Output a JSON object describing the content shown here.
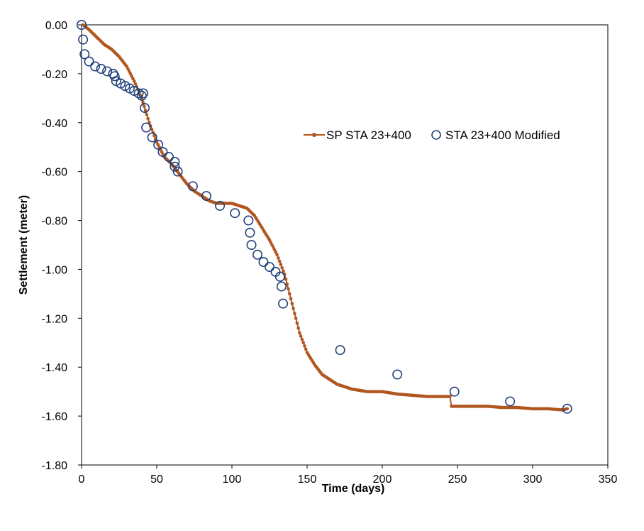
{
  "chart_data": {
    "type": "scatter",
    "xlabel": "Time (days)",
    "ylabel": "Settlement (meter)",
    "xlim": [
      0,
      350
    ],
    "ylim": [
      -1.8,
      0.0
    ],
    "x_ticks": [
      0,
      50,
      100,
      150,
      200,
      250,
      300,
      350
    ],
    "y_ticks": [
      0.0,
      -0.2,
      -0.4,
      -0.6,
      -0.8,
      -1.0,
      -1.2,
      -1.4,
      -1.6,
      -1.8
    ],
    "x_tick_labels": [
      "0",
      "50",
      "100",
      "150",
      "200",
      "250",
      "300",
      "350"
    ],
    "y_tick_labels": [
      "0.00",
      "-0.20",
      "-0.40",
      "-0.60",
      "-0.80",
      "-1.00",
      "-1.20",
      "-1.40",
      "-1.60",
      "-1.80"
    ],
    "grid": false,
    "legend_position": "right",
    "series": [
      {
        "name": "SP STA 23+400",
        "style": "line-markers",
        "color": "#B0561E",
        "points": [
          [
            1,
            0.0
          ],
          [
            5,
            -0.02
          ],
          [
            10,
            -0.05
          ],
          [
            15,
            -0.08
          ],
          [
            20,
            -0.1
          ],
          [
            25,
            -0.13
          ],
          [
            30,
            -0.17
          ],
          [
            35,
            -0.23
          ],
          [
            40,
            -0.3
          ],
          [
            45,
            -0.4
          ],
          [
            50,
            -0.48
          ],
          [
            55,
            -0.54
          ],
          [
            60,
            -0.57
          ],
          [
            65,
            -0.61
          ],
          [
            70,
            -0.65
          ],
          [
            75,
            -0.68
          ],
          [
            80,
            -0.7
          ],
          [
            85,
            -0.72
          ],
          [
            90,
            -0.73
          ],
          [
            95,
            -0.73
          ],
          [
            100,
            -0.73
          ],
          [
            105,
            -0.74
          ],
          [
            110,
            -0.75
          ],
          [
            115,
            -0.78
          ],
          [
            120,
            -0.83
          ],
          [
            125,
            -0.88
          ],
          [
            130,
            -0.94
          ],
          [
            135,
            -1.02
          ],
          [
            140,
            -1.14
          ],
          [
            145,
            -1.26
          ],
          [
            150,
            -1.34
          ],
          [
            155,
            -1.39
          ],
          [
            160,
            -1.43
          ],
          [
            165,
            -1.45
          ],
          [
            170,
            -1.47
          ],
          [
            175,
            -1.48
          ],
          [
            180,
            -1.49
          ],
          [
            185,
            -1.495
          ],
          [
            190,
            -1.5
          ],
          [
            200,
            -1.5
          ],
          [
            210,
            -1.51
          ],
          [
            220,
            -1.515
          ],
          [
            230,
            -1.52
          ],
          [
            240,
            -1.52
          ],
          [
            245,
            -1.52
          ],
          [
            246,
            -1.56
          ],
          [
            250,
            -1.56
          ],
          [
            260,
            -1.56
          ],
          [
            270,
            -1.56
          ],
          [
            280,
            -1.565
          ],
          [
            290,
            -1.565
          ],
          [
            300,
            -1.57
          ],
          [
            310,
            -1.57
          ],
          [
            320,
            -1.575
          ],
          [
            323,
            -1.57
          ]
        ]
      },
      {
        "name": "STA 23+400 Modified",
        "style": "open-circles",
        "color": "#1F3F7A",
        "points": [
          [
            0,
            0.0
          ],
          [
            1,
            -0.06
          ],
          [
            2,
            -0.12
          ],
          [
            5,
            -0.15
          ],
          [
            9,
            -0.17
          ],
          [
            13,
            -0.18
          ],
          [
            17,
            -0.19
          ],
          [
            21,
            -0.2
          ],
          [
            22,
            -0.21
          ],
          [
            23,
            -0.23
          ],
          [
            26,
            -0.24
          ],
          [
            29,
            -0.25
          ],
          [
            32,
            -0.26
          ],
          [
            35,
            -0.27
          ],
          [
            38,
            -0.28
          ],
          [
            40,
            -0.29
          ],
          [
            41,
            -0.28
          ],
          [
            42,
            -0.34
          ],
          [
            43,
            -0.42
          ],
          [
            47,
            -0.46
          ],
          [
            51,
            -0.49
          ],
          [
            54,
            -0.52
          ],
          [
            58,
            -0.54
          ],
          [
            62,
            -0.56
          ],
          [
            62,
            -0.58
          ],
          [
            64,
            -0.6
          ],
          [
            74,
            -0.66
          ],
          [
            83,
            -0.7
          ],
          [
            92,
            -0.74
          ],
          [
            102,
            -0.77
          ],
          [
            111,
            -0.8
          ],
          [
            112,
            -0.85
          ],
          [
            113,
            -0.9
          ],
          [
            117,
            -0.94
          ],
          [
            121,
            -0.97
          ],
          [
            125,
            -0.99
          ],
          [
            129,
            -1.01
          ],
          [
            132,
            -1.03
          ],
          [
            133,
            -1.07
          ],
          [
            134,
            -1.14
          ],
          [
            172,
            -1.33
          ],
          [
            210,
            -1.43
          ],
          [
            248,
            -1.5
          ],
          [
            285,
            -1.54
          ],
          [
            323,
            -1.57
          ]
        ]
      }
    ]
  }
}
